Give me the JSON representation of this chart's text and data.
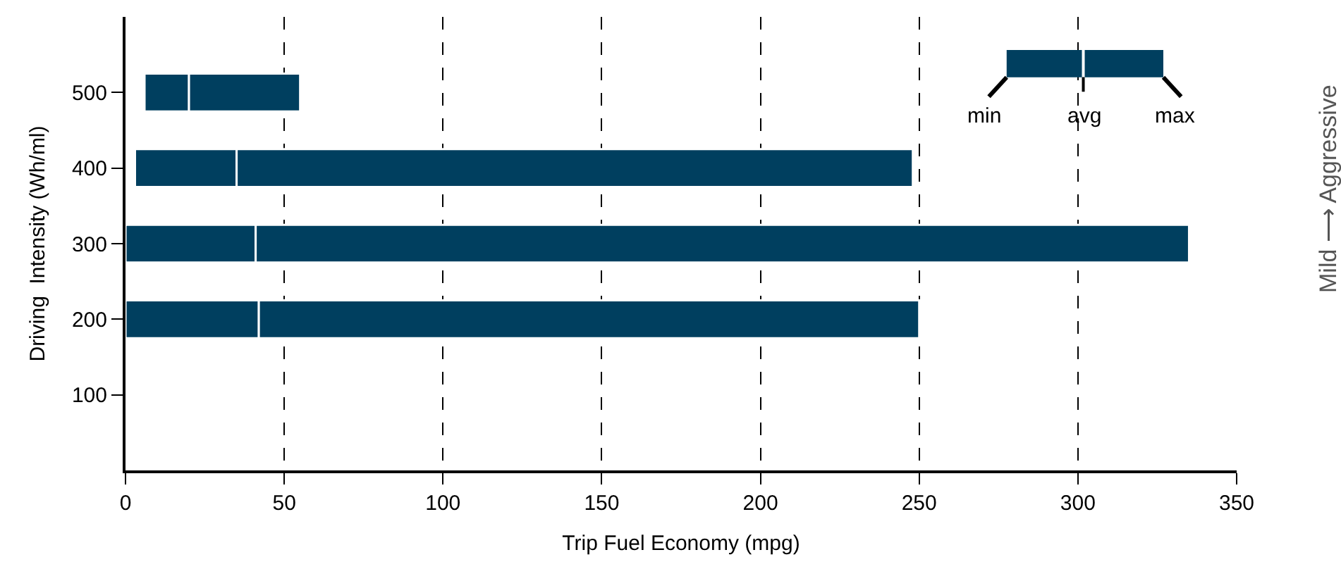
{
  "chart_data": {
    "type": "bar",
    "orientation": "horizontal",
    "xlabel": "Trip Fuel Economy (mpg)",
    "ylabel": "Driving  Intensity (Wh/ml)",
    "categories": [
      "500",
      "400",
      "300",
      "200",
      "100"
    ],
    "xlim": [
      0,
      350
    ],
    "xticks": [
      0,
      50,
      100,
      150,
      200,
      250,
      300,
      350
    ],
    "grid": "x",
    "series": [
      {
        "color": "#003f5f",
        "base": [
          6,
          3,
          0,
          0,
          null
        ],
        "values": [
          14,
          32,
          41,
          42,
          null
        ]
      },
      {
        "color": "#003f5f",
        "base": [
          20,
          35,
          41,
          42,
          null
        ],
        "values": [
          35,
          213,
          294,
          208,
          null
        ]
      }
    ],
    "annotations": [
      "min",
      "avg",
      "max",
      "Mild ⟶ Aggressive"
    ]
  }
}
